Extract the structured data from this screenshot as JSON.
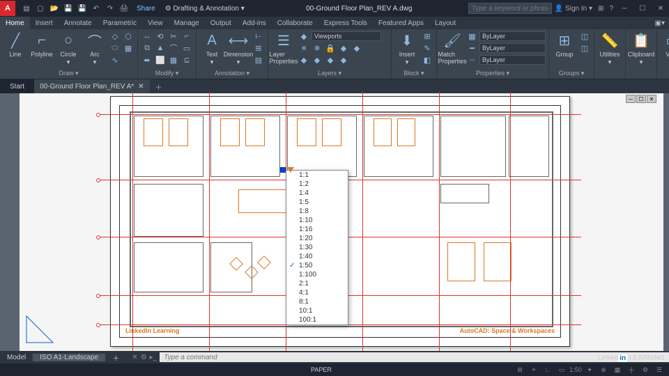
{
  "title_bar": {
    "logo": "A",
    "share": "Share",
    "workspace": "Drafting & Annotation",
    "filename": "00-Ground Floor Plan_REV A.dwg",
    "search_placeholder": "Type a keyword or phrase",
    "signin": "Sign In"
  },
  "menu": {
    "tabs": [
      "Home",
      "Insert",
      "Annotate",
      "Parametric",
      "View",
      "Manage",
      "Output",
      "Add-ins",
      "Collaborate",
      "Express Tools",
      "Featured Apps",
      "Layout"
    ],
    "active": 0
  },
  "ribbon": {
    "draw": {
      "label": "Draw ▾",
      "line": "Line",
      "polyline": "Polyline",
      "circle": "Circle",
      "arc": "Arc"
    },
    "modify": {
      "label": "Modify ▾"
    },
    "annotation": {
      "label": "Annotation ▾",
      "text": "Text",
      "dimension": "Dimension"
    },
    "layers": {
      "label": "Layers ▾",
      "btn": "Layer Properties",
      "sel": "Viewports"
    },
    "block": {
      "label": "Block ▾",
      "btn": "Insert"
    },
    "properties": {
      "label": "Properties ▾",
      "btn": "Match Properties",
      "bylayer": "ByLayer"
    },
    "groups": {
      "label": "Groups ▾",
      "btn": "Group"
    },
    "utilities": {
      "label": "Utilities"
    },
    "clipboard": {
      "label": "Clipboard"
    },
    "view": {
      "label": "View"
    }
  },
  "file_tabs": {
    "start": "Start",
    "tab": "00-Ground Floor Plan_REV A*"
  },
  "scale_options": [
    "1:1",
    "1:2",
    "1:4",
    "1:5",
    "1:8",
    "1:10",
    "1:16",
    "1:20",
    "1:30",
    "1:40",
    "1:50",
    "1:100",
    "2:1",
    "4:1",
    "8:1",
    "10:1",
    "100:1"
  ],
  "scale_selected": "1:50",
  "bottom": {
    "model": "Model",
    "layout": "ISO A1-Landscape",
    "cmd_placeholder": "Type a command"
  },
  "status": {
    "paper": "PAPER"
  },
  "drawing": {
    "titleL": "LinkedIn Learning",
    "titleR": "AutoCAD: Space & Workspaces"
  },
  "linkedin": {
    "a": "Linked",
    "b": "in",
    "c": " LEARNING"
  },
  "colors": {
    "bg": "#2d3640",
    "dark": "#1e2530",
    "panel": "#3a4550",
    "accent": "#8fb8e0",
    "orange": "#d97820",
    "red": "#e03030"
  }
}
